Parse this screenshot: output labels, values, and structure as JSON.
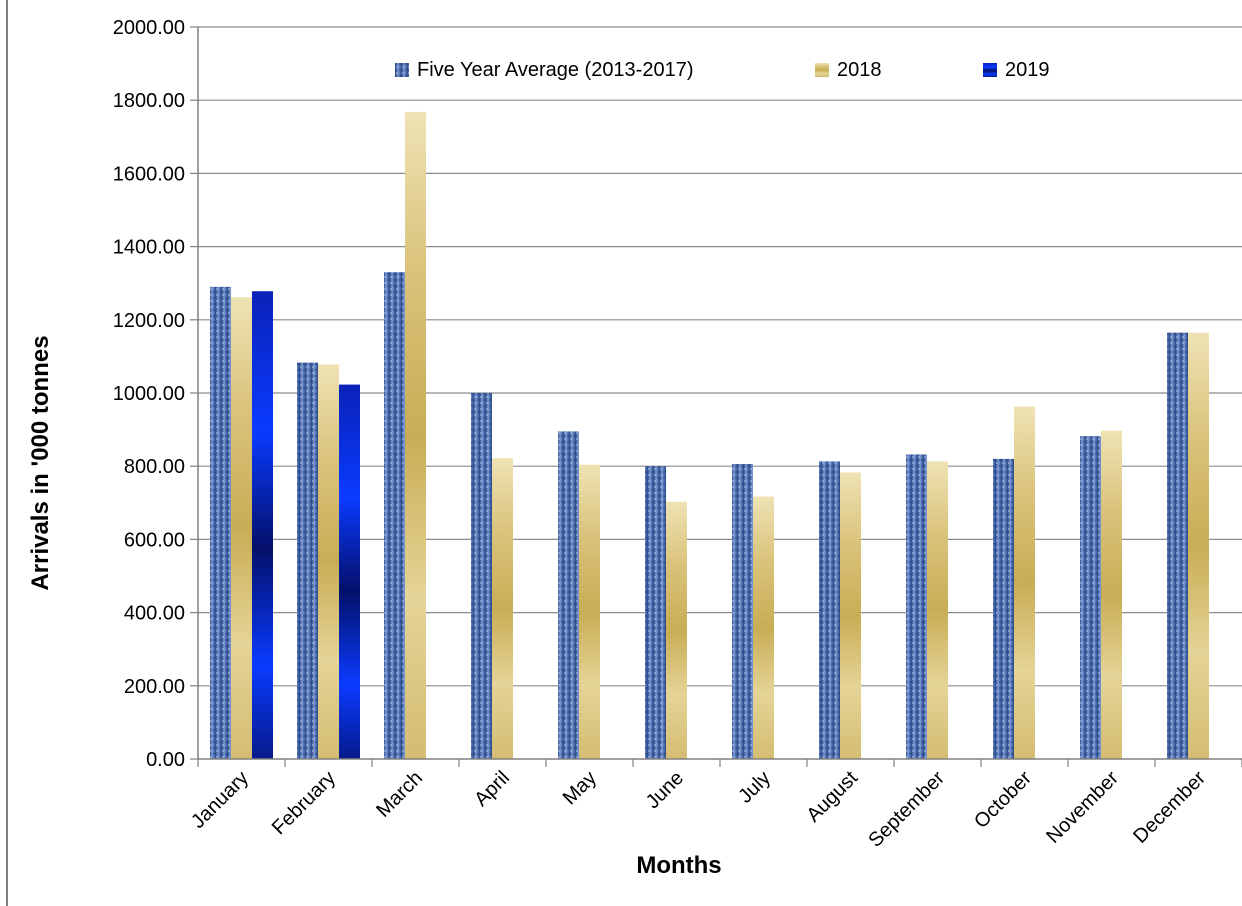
{
  "chart_data": {
    "type": "bar",
    "title": "",
    "xlabel": "Months",
    "ylabel": "Arrivals in '000 tonnes",
    "ylim": [
      0,
      2000
    ],
    "yticks": [
      "0.00",
      "200.00",
      "400.00",
      "600.00",
      "800.00",
      "1000.00",
      "1200.00",
      "1400.00",
      "1600.00",
      "1800.00",
      "2000.00"
    ],
    "grid": true,
    "legend_position": "top",
    "categories": [
      "January",
      "February",
      "March",
      "April",
      "May",
      "June",
      "July",
      "August",
      "September",
      "October",
      "November",
      "December"
    ],
    "series": [
      {
        "name": "Five Year Average (2013-2017)",
        "color": "#4a6fb5",
        "values": [
          1290,
          1083,
          1330,
          1000,
          895,
          800,
          806,
          813,
          832,
          820,
          882,
          1165
        ]
      },
      {
        "name": "2018",
        "color": "#d9c27a",
        "values": [
          1262,
          1078,
          1768,
          822,
          804,
          703,
          717,
          783,
          813,
          963,
          897,
          1165
        ]
      },
      {
        "name": "2019",
        "color": "#0a2bd6",
        "values": [
          1278,
          1023,
          null,
          null,
          null,
          null,
          null,
          null,
          null,
          null,
          null,
          null
        ]
      }
    ]
  }
}
